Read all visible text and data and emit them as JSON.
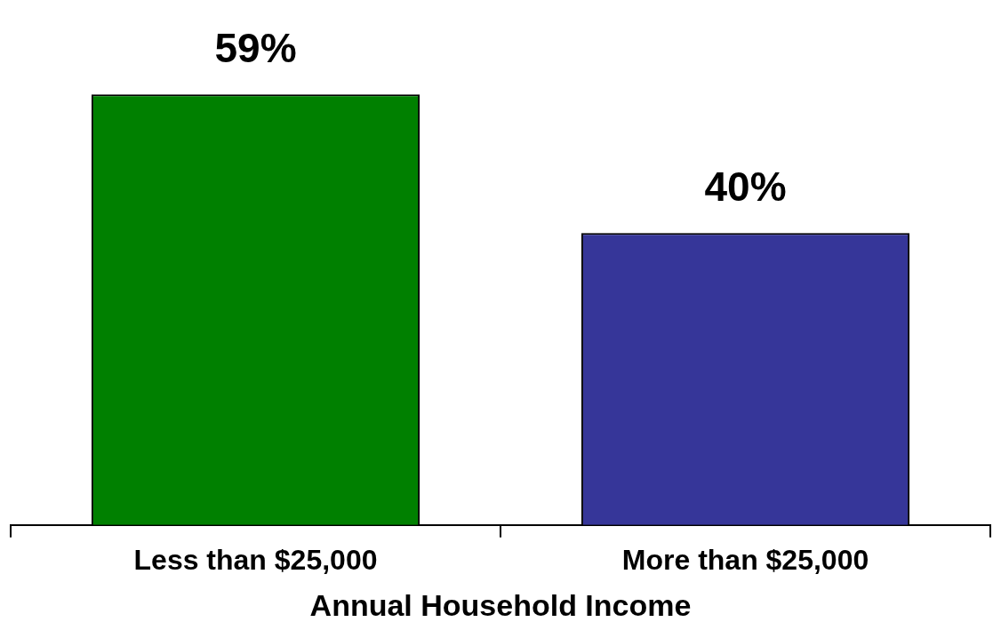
{
  "chart_data": {
    "type": "bar",
    "categories": [
      "Less than $25,000",
      "More than $25,000"
    ],
    "values": [
      59,
      40
    ],
    "colors": [
      "#008000",
      "#363699"
    ],
    "value_labels": [
      "59%",
      "40%"
    ],
    "xlabel": "Annual Household Income",
    "grid": false,
    "legend": false
  }
}
